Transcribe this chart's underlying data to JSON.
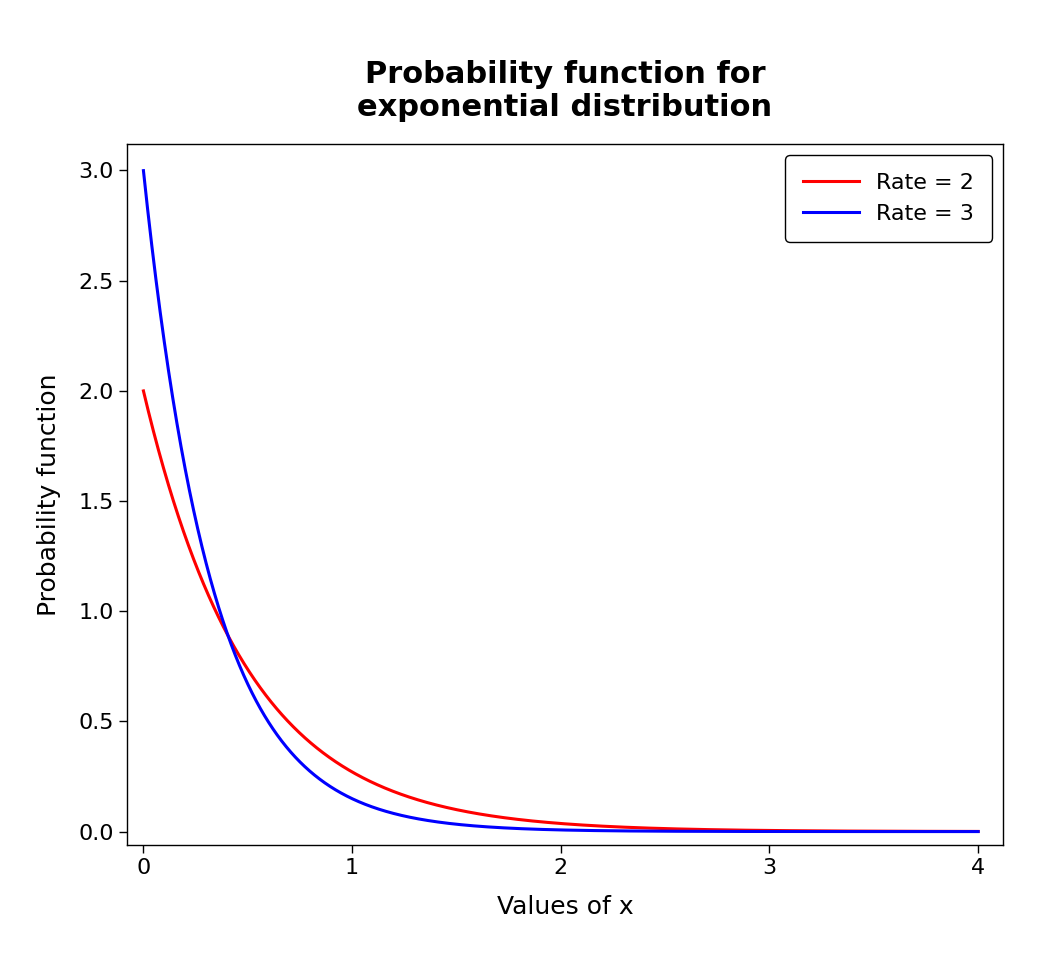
{
  "title": "Probability function for\nexponential distribution",
  "xlabel": "Values of x",
  "ylabel": "Probability function",
  "xlim": [
    -0.08,
    4.12
  ],
  "ylim": [
    -0.06,
    3.12
  ],
  "x_end": 4.0,
  "rates": [
    2,
    3
  ],
  "line_colors": [
    "#FF0000",
    "#0000FF"
  ],
  "legend_labels": [
    "Rate = 2",
    "Rate = 3"
  ],
  "xticks": [
    0,
    1,
    2,
    3,
    4
  ],
  "yticks": [
    0.0,
    0.5,
    1.0,
    1.5,
    2.0,
    2.5,
    3.0
  ],
  "title_fontsize": 22,
  "label_fontsize": 18,
  "tick_fontsize": 16,
  "legend_fontsize": 16,
  "line_width": 2.2,
  "background_color": "#FFFFFF",
  "plot_bg_color": "#FFFFFF"
}
